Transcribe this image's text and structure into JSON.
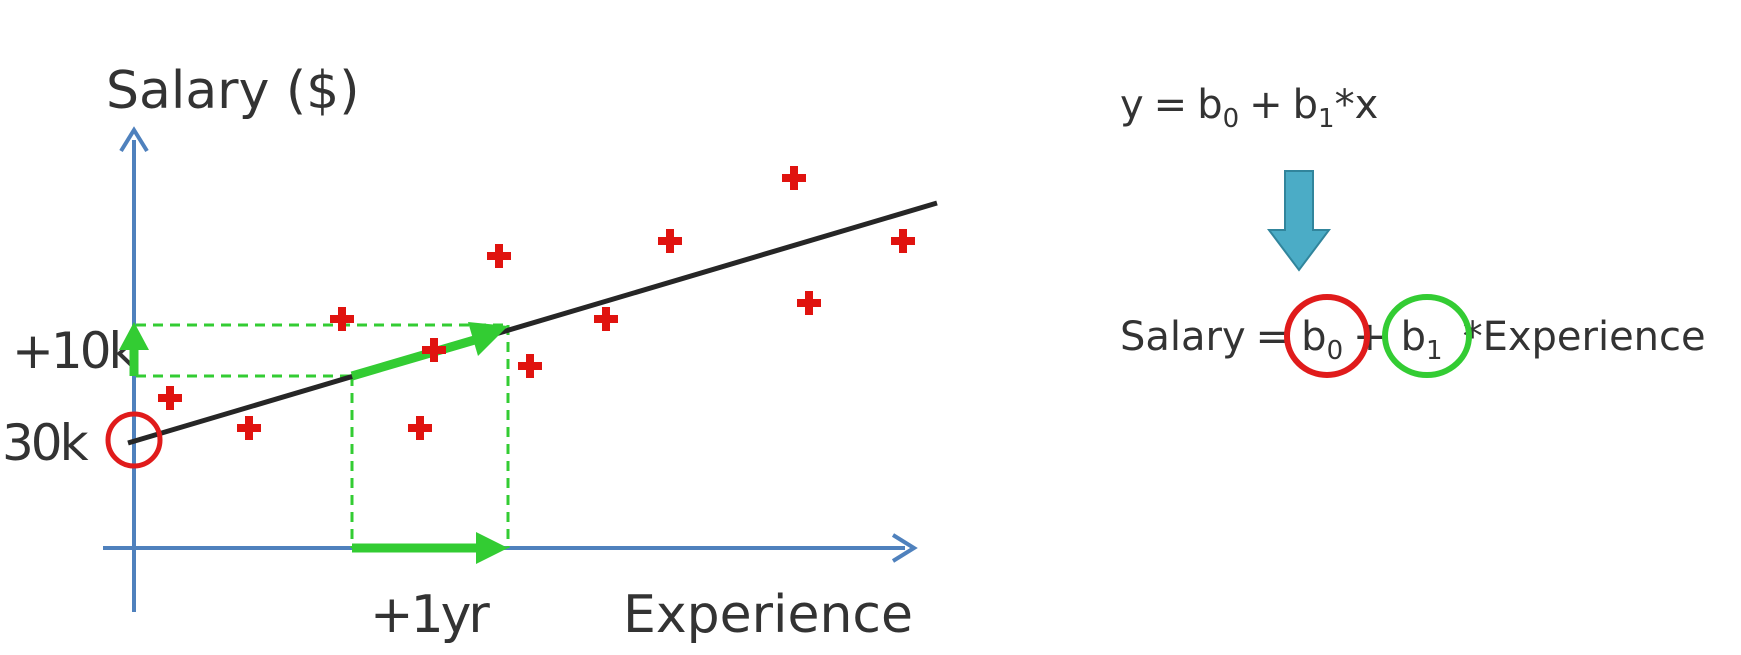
{
  "diagram": {
    "y_axis_label": "Salary ($)",
    "x_axis_label": "Experience",
    "intercept_label": "30k",
    "delta_y_label": "+10k",
    "delta_x_label": "+1yr",
    "colors": {
      "axis": "#4f81bd",
      "regression_line": "#262626",
      "data_point": "#e0130f",
      "green": "#33cc33",
      "intercept_circle": "#e01b1b",
      "down_arrow": "#4bacc6"
    },
    "icons": [
      "plus-marker-icon",
      "down-arrow-icon",
      "arrow-icon"
    ]
  },
  "equations": {
    "general": {
      "y": "y",
      "eq": "=",
      "b": "b",
      "sub0": "0",
      "plus": "+",
      "sub1": "1",
      "times_x": "*x"
    },
    "salary": {
      "lhs": "Salary",
      "eq": "=",
      "b": "b",
      "sub0": "0",
      "plus": "+",
      "sub1": "1",
      "rhs": "*Experience"
    }
  }
}
